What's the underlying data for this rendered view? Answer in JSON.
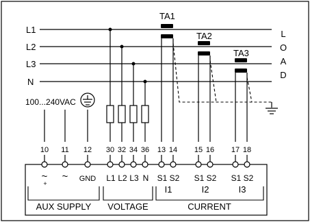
{
  "lines": {
    "l1": "L1",
    "l2": "L2",
    "l3": "L3",
    "n": "N"
  },
  "load": [
    "L",
    "O",
    "A",
    "D"
  ],
  "current_transformers": {
    "ta1": "TA1",
    "ta2": "TA2",
    "ta3": "TA3"
  },
  "aux_supply_voltage": "100...240VAC",
  "terminal_numbers": [
    "10",
    "11",
    "12",
    "30",
    "32",
    "34",
    "36",
    "13",
    "14",
    "15",
    "16",
    "17",
    "18"
  ],
  "terminal_labels": {
    "aux_ac": "~",
    "aux_plus": "+",
    "aux_dc": "~",
    "gnd": "GND",
    "l1": "L1",
    "l2": "L2",
    "l3": "L3",
    "n": "N",
    "s1_1": "S1",
    "s2_1": "S2",
    "i1": "I1",
    "s1_2": "S1",
    "s2_2": "S2",
    "i2": "I2",
    "s1_3": "S1",
    "s2_3": "S2",
    "i3": "I3"
  },
  "groups": {
    "aux_supply": "AUX SUPPLY",
    "voltage": "VOLTAGE",
    "current": "CURRENT"
  },
  "icons": {
    "protective_earth": "protective-earth-icon",
    "ground": "ground-icon",
    "fuse": "fuse-icon",
    "current_transformer": "current-transformer-icon"
  }
}
